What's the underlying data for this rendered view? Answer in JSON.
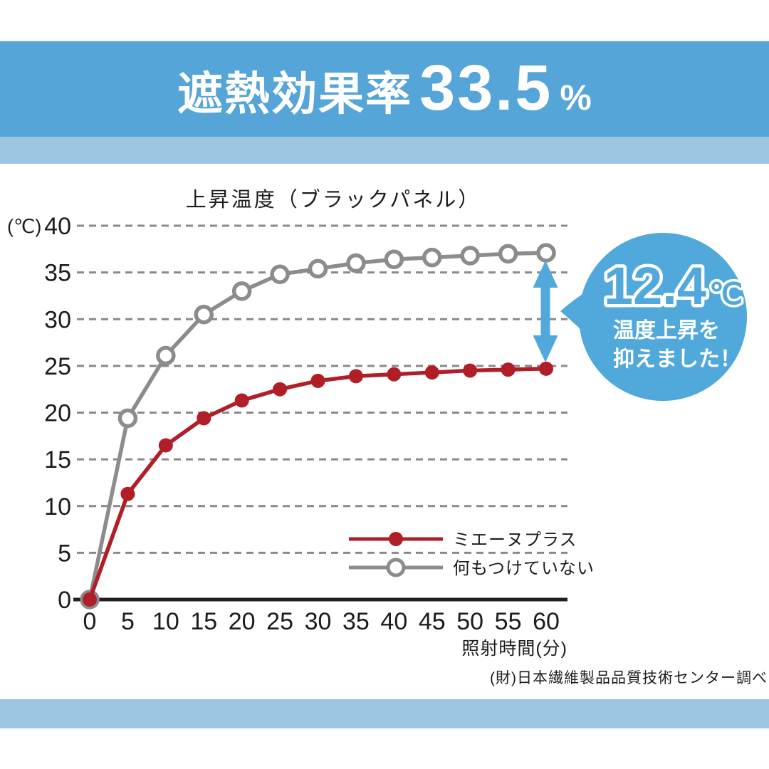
{
  "header": {
    "title_prefix": "遮熱効果率",
    "title_value": "33.5",
    "title_unit": "%"
  },
  "chart_data": {
    "type": "line",
    "title": "上昇温度（ブラックパネル）",
    "y_unit_label": "(℃)",
    "xlabel": "照射時間(分)",
    "x": [
      0,
      5,
      10,
      15,
      20,
      25,
      30,
      35,
      40,
      45,
      50,
      55,
      60
    ],
    "y_ticks": [
      0,
      5,
      10,
      15,
      20,
      25,
      30,
      35,
      40
    ],
    "xlim": [
      0,
      60
    ],
    "ylim": [
      0,
      40
    ],
    "grid": "horizontal-dashed",
    "legend_position": "inside-bottom-right",
    "series": [
      {
        "name": "ミエーヌプラス",
        "color_key": "series_red",
        "marker": "filled-circle",
        "values": [
          0,
          11.3,
          16.5,
          19.4,
          21.3,
          22.5,
          23.4,
          23.9,
          24.1,
          24.3,
          24.5,
          24.6,
          24.7
        ]
      },
      {
        "name": "何もつけていない",
        "color_key": "series_gray",
        "marker": "open-circle",
        "values": [
          0,
          19.4,
          26.1,
          30.5,
          33.0,
          34.8,
          35.4,
          36.0,
          36.4,
          36.6,
          36.8,
          37.0,
          37.1
        ]
      }
    ],
    "annotation": {
      "value": "12.4",
      "unit": "℃",
      "line1": "温度上昇を",
      "line2": "抑えました！",
      "difference_at_x": 60
    }
  },
  "footer": {
    "source": "(財)日本繊維製品品質技術センター調べ"
  },
  "colors": {
    "header_band": "#55a5d8",
    "light_band": "#9cc6e1",
    "bubble_blue": "#51a9db",
    "series_red": "#b01e28",
    "series_gray": "#8c8c8c",
    "axis_black": "#1f1f1f",
    "grid_gray": "#8a8a8a",
    "text_dark": "#1c1c1c"
  }
}
